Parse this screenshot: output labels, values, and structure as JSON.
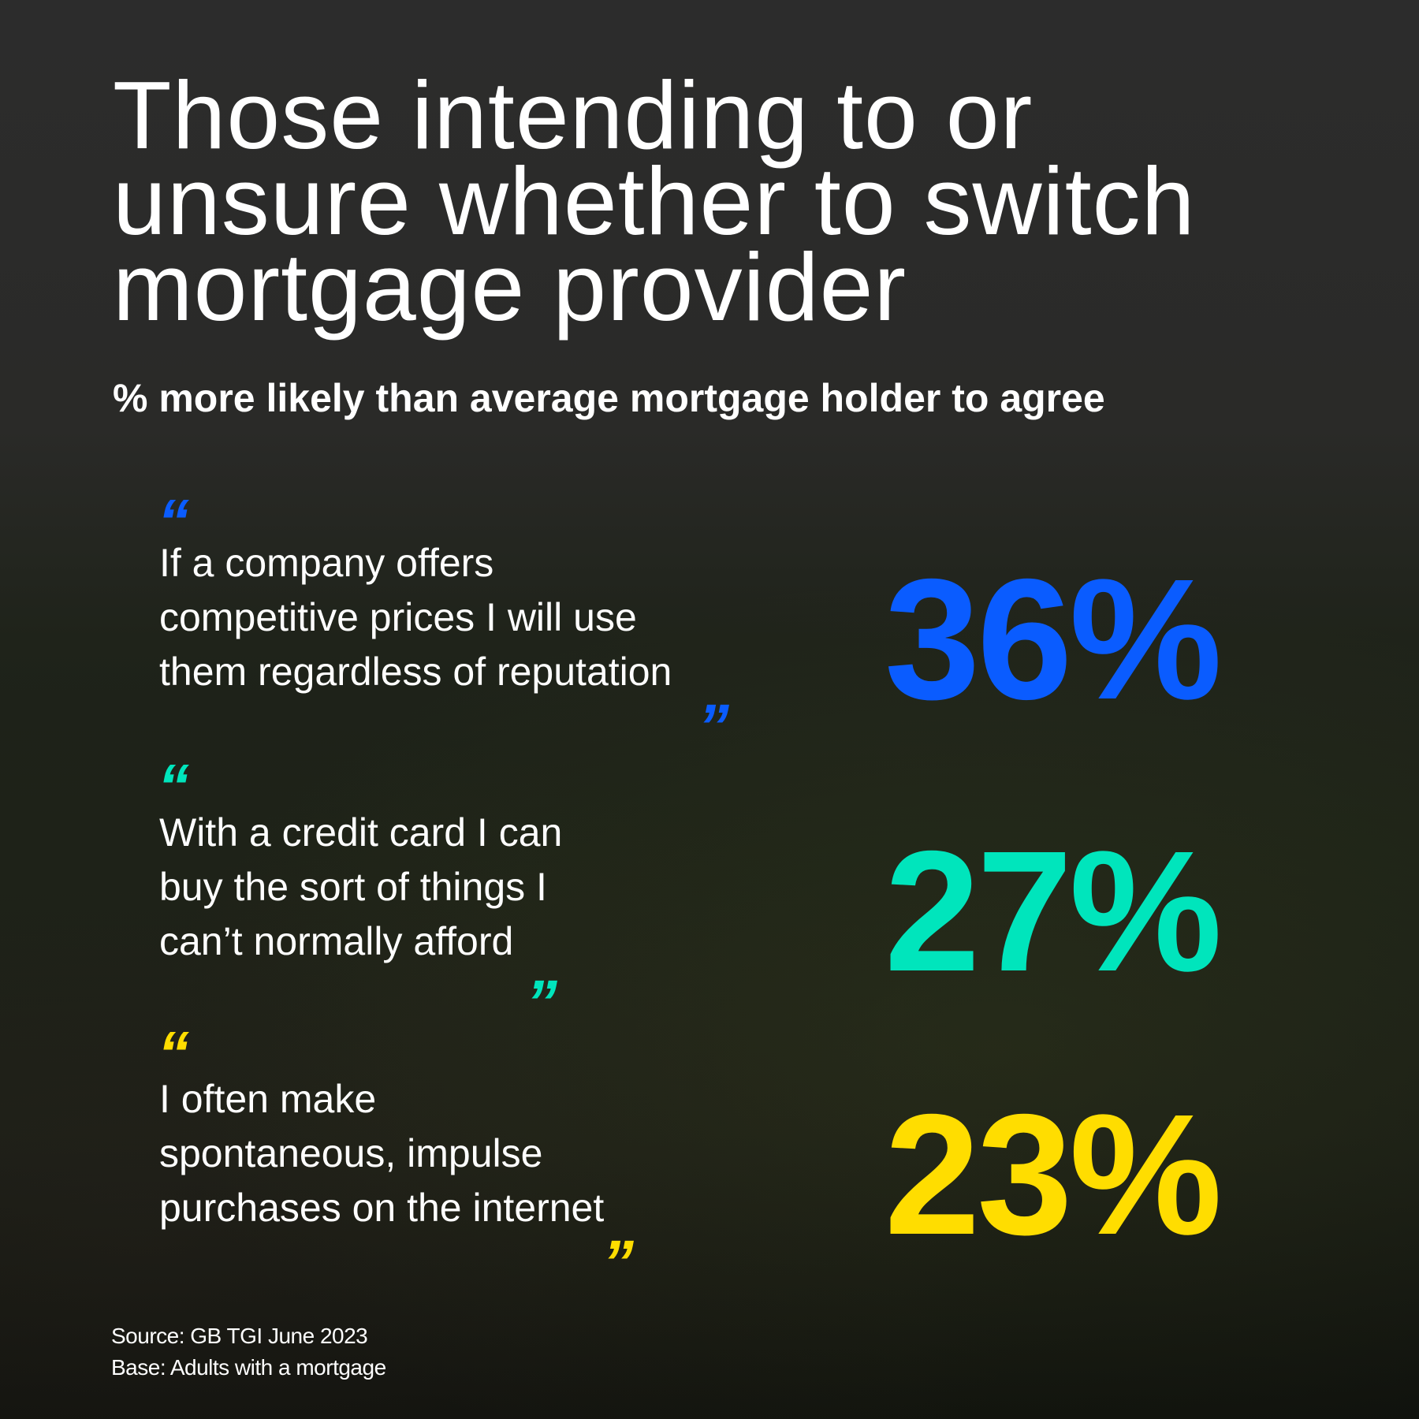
{
  "title_lines": [
    "Those intending to or",
    "unsure whether to switch",
    "mortgage provider"
  ],
  "subtitle": "% more likely than average mortgage holder to agree",
  "colors": {
    "blue": "#0a5cff",
    "teal": "#00e5bc",
    "yellow": "#ffdd00"
  },
  "items": [
    {
      "lines": [
        "If a company offers",
        "competitive prices I will use",
        "them regardless of reputation"
      ],
      "value": "36%",
      "color": "#0a5cff",
      "open_quote": "“",
      "close_quote": "”"
    },
    {
      "lines": [
        "With a credit card I can",
        "buy the sort of things I",
        "can’t normally afford"
      ],
      "value": "27%",
      "color": "#00e5bc",
      "open_quote": "“",
      "close_quote": "”"
    },
    {
      "lines": [
        "I often make",
        "spontaneous, impulse",
        "purchases on the internet"
      ],
      "value": "23%",
      "color": "#ffdd00",
      "open_quote": "“",
      "close_quote": "”"
    }
  ],
  "source": "Source: GB TGI June 2023",
  "base": "Base: Adults with a mortgage"
}
